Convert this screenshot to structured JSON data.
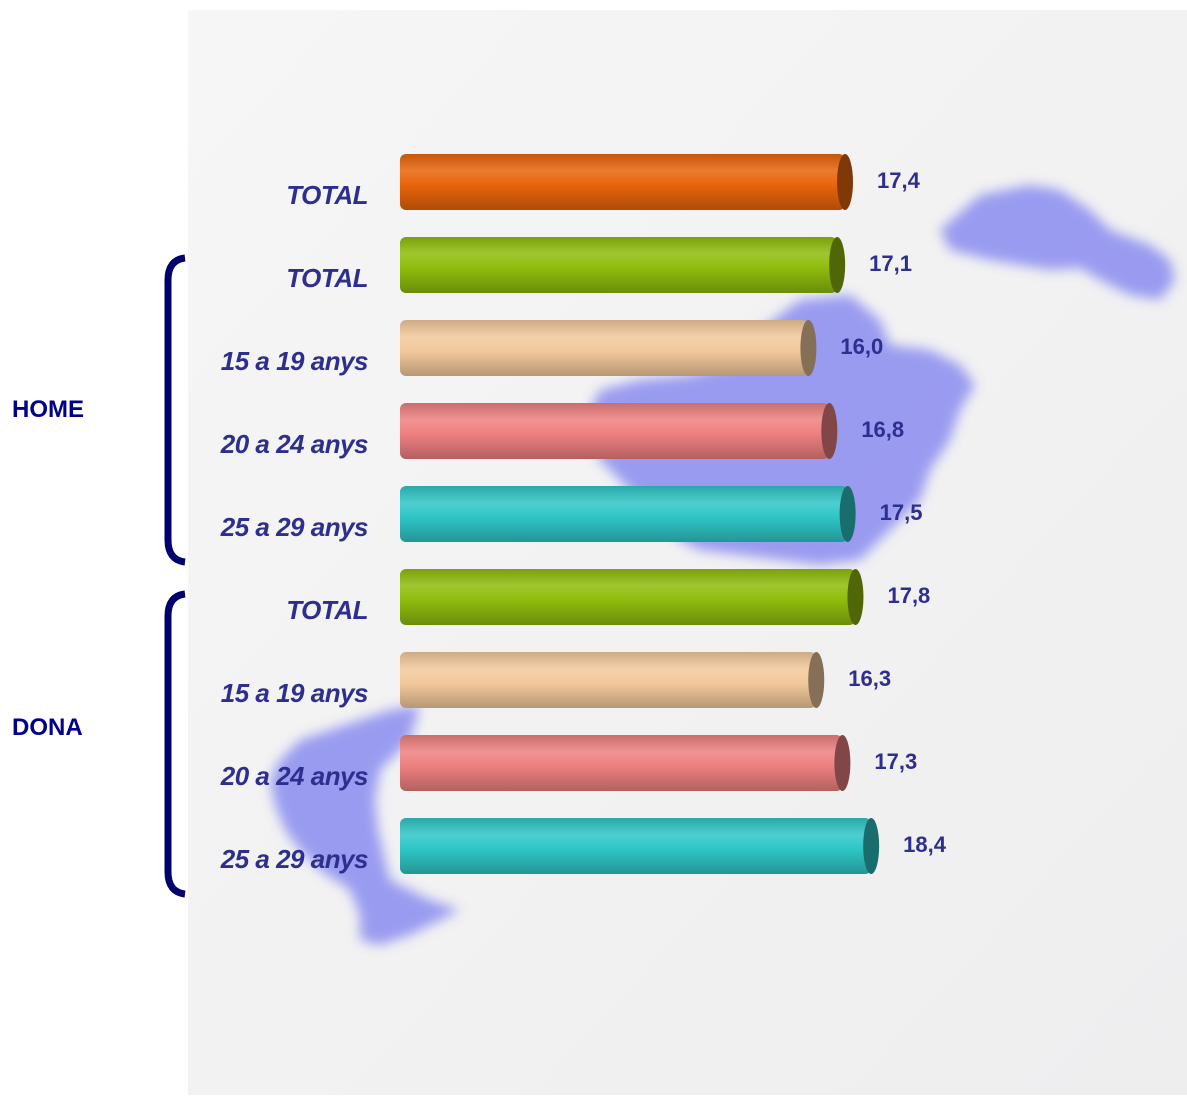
{
  "chart_data": {
    "type": "bar",
    "orientation": "horizontal",
    "categories": [
      "TOTAL",
      "TOTAL",
      "15 a 19 anys",
      "20 a 24 anys",
      "25 a 29 anys",
      "TOTAL",
      "15 a 19 anys",
      "20 a 24 anys",
      "25 a 29 anys"
    ],
    "groups": [
      {
        "name": "HOME",
        "categories": [
          "TOTAL",
          "15 a 19 anys",
          "20 a 24 anys",
          "25 a 29 anys"
        ]
      },
      {
        "name": "DONA",
        "categories": [
          "TOTAL",
          "15 a 19 anys",
          "20 a 24 anys",
          "25 a 29 anys"
        ]
      }
    ],
    "values": [
      17.4,
      17.1,
      16.0,
      16.8,
      17.5,
      17.8,
      16.3,
      17.3,
      18.4
    ],
    "value_labels": [
      "17,4",
      "17,1",
      "16,0",
      "16,8",
      "17,5",
      "17,8",
      "16,3",
      "17,3",
      "18,4"
    ],
    "bar_colors": [
      "#e8650a",
      "#8fbc0c",
      "#f2c99c",
      "#ee8080",
      "#2fc6c6",
      "#8fbc0c",
      "#f2c99c",
      "#ee8080",
      "#2fc6c6"
    ],
    "title": "",
    "xlabel": "",
    "ylabel": "",
    "xlim": [
      0,
      18.4
    ],
    "grid": false,
    "legend": "none"
  },
  "colors": {
    "label_text": "#2e2e8f",
    "group_text": "#00008b",
    "bracket": "#00006e",
    "background_map": "#8a8cf0"
  }
}
